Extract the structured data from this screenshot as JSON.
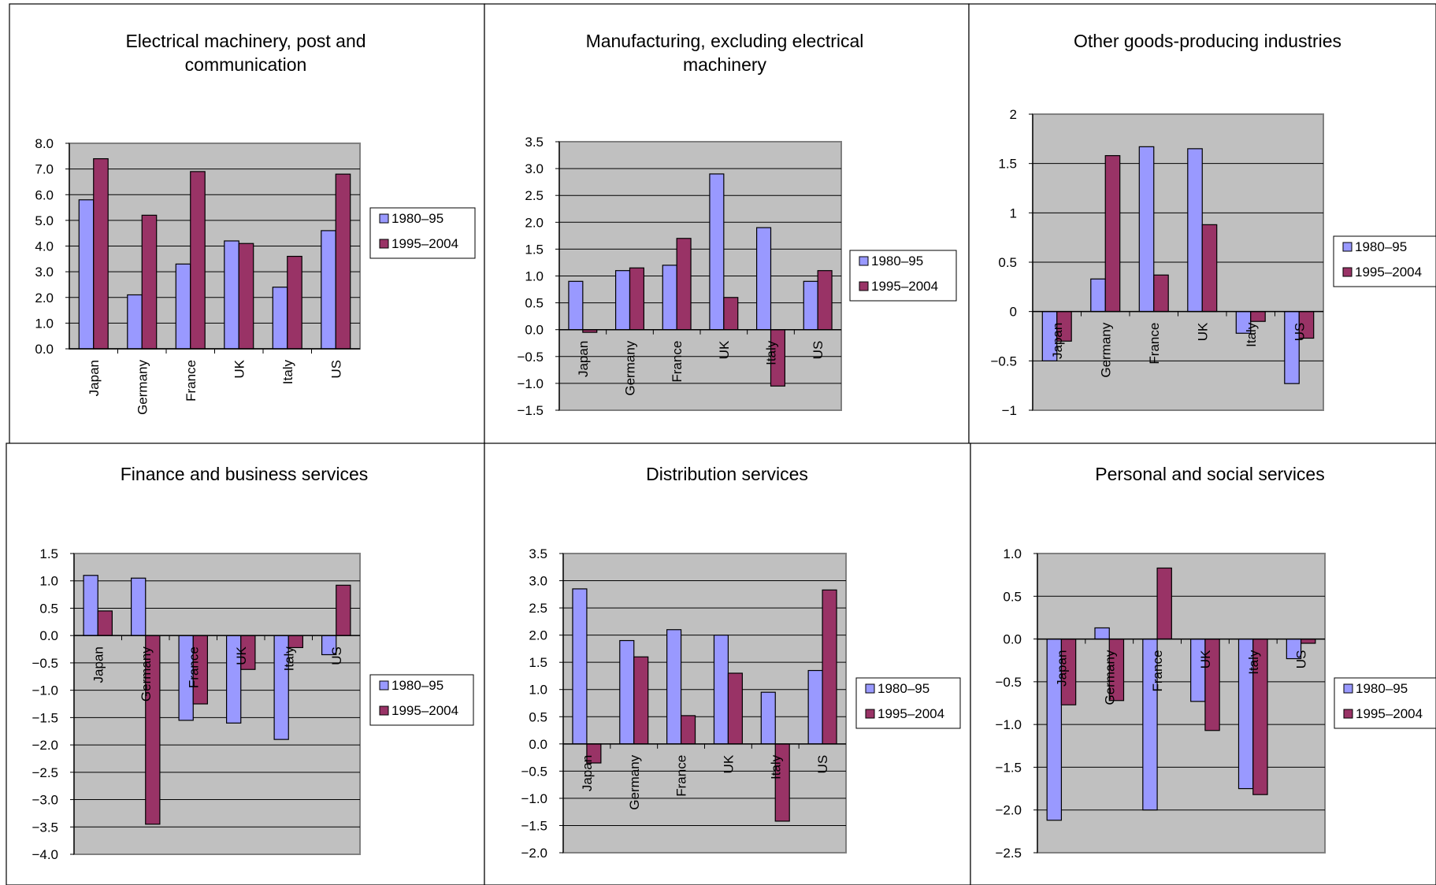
{
  "figure_title": "",
  "legend_labels": [
    "1980–95",
    "1995–2004"
  ],
  "colors": {
    "series1": "#9999ff",
    "series2": "#993366",
    "plot_bg": "#c0c0c0",
    "grid": "#000000"
  },
  "chart_data": [
    {
      "type": "bar",
      "title": "Electrical machinery, post and communication",
      "title_lines": [
        "Electrical machinery, post and",
        "communication"
      ],
      "categories": [
        "Japan",
        "Germany",
        "France",
        "UK",
        "Italy",
        "US"
      ],
      "series": [
        {
          "name": "1980–95",
          "values": [
            5.8,
            2.1,
            3.3,
            4.2,
            2.4,
            4.6
          ]
        },
        {
          "name": "1995–2004",
          "values": [
            7.4,
            5.2,
            6.9,
            4.1,
            3.6,
            6.8
          ]
        }
      ],
      "ylim": [
        0,
        8
      ],
      "yticks": [
        0,
        1,
        2,
        3,
        4,
        5,
        6,
        7,
        8
      ],
      "ytick_labels": [
        "0.0",
        "1.0",
        "2.0",
        "3.0",
        "4.0",
        "5.0",
        "6.0",
        "7.0",
        "8.0"
      ],
      "grid": true,
      "legend": "right"
    },
    {
      "type": "bar",
      "title": "Manufacturing, excluding electrical machinery",
      "title_lines": [
        "Manufacturing, excluding electrical",
        "machinery"
      ],
      "categories": [
        "Japan",
        "Germany",
        "France",
        "UK",
        "Italy",
        "US"
      ],
      "series": [
        {
          "name": "1980–95",
          "values": [
            0.9,
            1.1,
            1.2,
            2.9,
            1.9,
            0.9
          ]
        },
        {
          "name": "1995–2004",
          "values": [
            -0.05,
            1.15,
            1.7,
            0.6,
            -1.05,
            1.1
          ]
        }
      ],
      "ylim": [
        -1.5,
        3.5
      ],
      "yticks": [
        -1.5,
        -1,
        -0.5,
        0,
        0.5,
        1,
        1.5,
        2,
        2.5,
        3,
        3.5
      ],
      "ytick_labels": [
        "−1.5",
        "−1.0",
        "−0.5",
        "0.0",
        "0.5",
        "1.0",
        "1.5",
        "2.0",
        "2.5",
        "3.0",
        "3.5"
      ],
      "grid": true,
      "legend": "right"
    },
    {
      "type": "bar",
      "title": "Other goods-producing industries",
      "title_lines": [
        "Other goods-producing industries"
      ],
      "categories": [
        "Japan",
        "Germany",
        "France",
        "UK",
        "Italy",
        "US"
      ],
      "series": [
        {
          "name": "1980–95",
          "values": [
            -0.5,
            0.33,
            1.67,
            1.65,
            -0.22,
            -0.73
          ]
        },
        {
          "name": "1995–2004",
          "values": [
            -0.3,
            1.58,
            0.37,
            0.88,
            -0.1,
            -0.27
          ]
        }
      ],
      "ylim": [
        -1,
        2
      ],
      "yticks": [
        -1,
        -0.5,
        0,
        0.5,
        1,
        1.5,
        2
      ],
      "ytick_labels": [
        "−1",
        "−0.5",
        "0",
        "0.5",
        "1",
        "1.5",
        "2"
      ],
      "grid": true,
      "legend": "right"
    },
    {
      "type": "bar",
      "title": "Finance and business services",
      "title_lines": [
        "Finance and business services"
      ],
      "categories": [
        "Japan",
        "Germany",
        "France",
        "UK",
        "Italy",
        "US"
      ],
      "series": [
        {
          "name": "1980–95",
          "values": [
            1.1,
            1.05,
            -1.55,
            -1.6,
            -1.9,
            -0.35
          ]
        },
        {
          "name": "1995–2004",
          "values": [
            0.45,
            -3.45,
            -1.25,
            -0.62,
            -0.22,
            0.92
          ]
        }
      ],
      "ylim": [
        -4,
        1.5
      ],
      "yticks": [
        -4,
        -3.5,
        -3,
        -2.5,
        -2,
        -1.5,
        -1,
        -0.5,
        0,
        0.5,
        1,
        1.5
      ],
      "ytick_labels": [
        "−4.0",
        "−3.5",
        "−3.0",
        "−2.5",
        "−2.0",
        "−1.5",
        "−1.0",
        "−0.5",
        "0.0",
        "0.5",
        "1.0",
        "1.5"
      ],
      "grid": true,
      "legend": "right"
    },
    {
      "type": "bar",
      "title": "Distribution services",
      "title_lines": [
        "Distribution services"
      ],
      "categories": [
        "Japan",
        "Germany",
        "France",
        "UK",
        "Italy",
        "US"
      ],
      "series": [
        {
          "name": "1980–95",
          "values": [
            2.85,
            1.9,
            2.1,
            2.0,
            0.95,
            1.35
          ]
        },
        {
          "name": "1995–2004",
          "values": [
            -0.35,
            1.6,
            0.52,
            1.3,
            -1.42,
            2.83
          ]
        }
      ],
      "ylim": [
        -2,
        3.5
      ],
      "yticks": [
        -2,
        -1.5,
        -1,
        -0.5,
        0,
        0.5,
        1,
        1.5,
        2,
        2.5,
        3,
        3.5
      ],
      "ytick_labels": [
        "−2.0",
        "−1.5",
        "−1.0",
        "−0.5",
        "0.0",
        "0.5",
        "1.0",
        "1.5",
        "2.0",
        "2.5",
        "3.0",
        "3.5"
      ],
      "grid": true,
      "legend": "right"
    },
    {
      "type": "bar",
      "title": "Personal and social services",
      "title_lines": [
        "Personal and social services"
      ],
      "categories": [
        "Japan",
        "Germany",
        "France",
        "UK",
        "Italy",
        "US"
      ],
      "series": [
        {
          "name": "1980–95",
          "values": [
            -2.12,
            0.13,
            -2.0,
            -0.73,
            -1.75,
            -0.23
          ]
        },
        {
          "name": "1995–2004",
          "values": [
            -0.77,
            -0.72,
            0.83,
            -1.07,
            -1.82,
            -0.05
          ]
        }
      ],
      "ylim": [
        -2.5,
        1.0
      ],
      "yticks": [
        -2.5,
        -2,
        -1.5,
        -1,
        -0.5,
        0,
        0.5,
        1
      ],
      "ytick_labels": [
        "−2.5",
        "−2.0",
        "−1.5",
        "−1.0",
        "−0.5",
        "0.0",
        "0.5",
        "1.0"
      ],
      "grid": true,
      "legend": "right"
    }
  ]
}
